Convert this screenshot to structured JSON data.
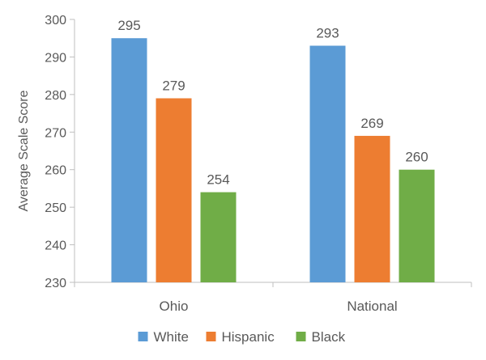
{
  "chart_data": {
    "type": "bar",
    "title": "",
    "xlabel": "",
    "ylabel": "Average Scale Score",
    "ylim": [
      230,
      300
    ],
    "yticks": [
      230,
      240,
      250,
      260,
      270,
      280,
      290,
      300
    ],
    "grid": false,
    "legend_position": "bottom",
    "categories": [
      "Ohio",
      "National"
    ],
    "series": [
      {
        "name": "White",
        "values": [
          295,
          293
        ],
        "color": "#5B9BD5"
      },
      {
        "name": "Hispanic",
        "values": [
          279,
          269
        ],
        "color": "#ED7D31"
      },
      {
        "name": "Black",
        "values": [
          254,
          260
        ],
        "color": "#70AD47"
      }
    ]
  }
}
